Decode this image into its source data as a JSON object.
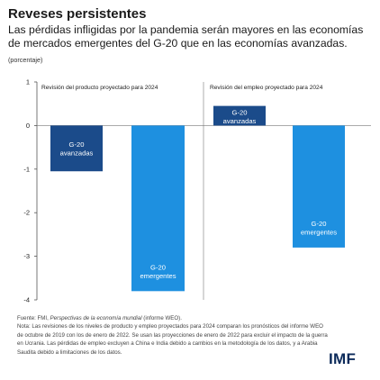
{
  "header": {
    "title": "Reveses persistentes",
    "subtitle": "Las pérdidas infligidas por la pandemia serán mayores en las economías de mercados emergentes del G-20 que en las economías avanzadas.",
    "unit": "(porcentaje)"
  },
  "chart_data": {
    "type": "bar",
    "ylim": [
      -4,
      1
    ],
    "yticks": [
      1,
      0,
      -1,
      -2,
      -3,
      -4
    ],
    "grid": false,
    "legend": "none",
    "panels": [
      {
        "title": "Revisión del producto proyectado para 2024",
        "categories": [
          "G-20\navanzadas",
          "G-20\nemergentes"
        ],
        "values": [
          -1.05,
          -3.8
        ],
        "colors": [
          "#1b4b8a",
          "#1e90e0"
        ]
      },
      {
        "title": "Revisión del empleo proyectado para 2024",
        "categories": [
          "G-20\navanzadas",
          "G-20\nemergentes"
        ],
        "values": [
          0.45,
          -2.8
        ],
        "colors": [
          "#1b4b8a",
          "#1e90e0"
        ]
      }
    ]
  },
  "notes": {
    "source_prefix": "Fuente: FMI, ",
    "source_italic": "Perspectivas de la economía mundial",
    "source_suffix": " (informe WEO).",
    "note": "Nota: Las revisiones de los niveles de producto y empleo proyectados para 2024 comparan los pronósticos del informe WEO de octubre de 2019 con los de enero de 2022. Se usan las proyecciones de enero de 2022 para excluir el impacto de la guerra en Ucrania. Las pérdidas de empleo excluyen a China e India debido a cambios en la metodología de los datos, y a Arabia Saudita debido a limitaciones de los datos."
  },
  "brand": {
    "logo": "IMF"
  }
}
